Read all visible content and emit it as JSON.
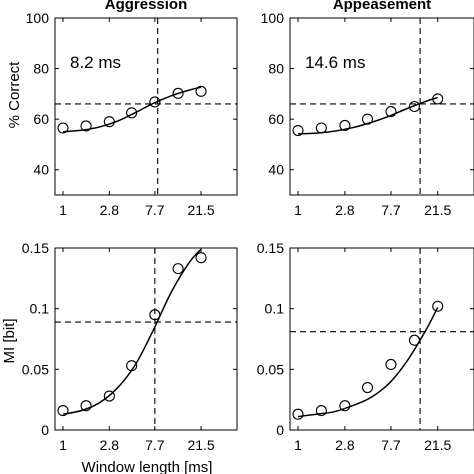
{
  "chart_data": [
    {
      "type": "scatter",
      "title": "Aggression",
      "xlabel": "",
      "ylabel": "% Correct",
      "annotation": "8.2 ms",
      "x_scale": "log",
      "xlim": [
        1,
        40
      ],
      "ylim": [
        30,
        100
      ],
      "xticks": [
        1,
        2.8,
        7.7,
        21.5
      ],
      "xtick_labels": [
        "1",
        "2.8",
        "7.7",
        "21.5"
      ],
      "yticks": [
        40,
        60,
        80,
        100
      ],
      "ytick_labels": [
        "40",
        "60",
        "80",
        "100"
      ],
      "points": {
        "x": [
          1,
          1.67,
          2.8,
          4.6,
          7.7,
          12.9,
          21.5
        ],
        "y": [
          56.5,
          57.3,
          59,
          62.5,
          66.8,
          70.2,
          71
        ]
      },
      "fit": {
        "x": [
          1,
          1.5,
          2.2,
          3.3,
          5,
          7.5,
          11,
          16.5,
          21.5
        ],
        "y": [
          55,
          55.6,
          56.8,
          59.1,
          62.6,
          66.3,
          69.2,
          71.5,
          72.6
        ]
      },
      "ref_x": 8.2,
      "ref_y": 66
    },
    {
      "type": "scatter",
      "title": "Appeasement",
      "xlabel": "",
      "ylabel": "",
      "annotation": "14.6 ms",
      "x_scale": "log",
      "xlim": [
        1,
        40
      ],
      "ylim": [
        30,
        100
      ],
      "xticks": [
        1,
        2.8,
        7.7,
        21.5
      ],
      "xtick_labels": [
        "1",
        "2.8",
        "7.7",
        "21.5"
      ],
      "yticks": [
        40,
        60,
        80,
        100
      ],
      "ytick_labels": [
        "40",
        "60",
        "80",
        "100"
      ],
      "points": {
        "x": [
          1,
          1.67,
          2.8,
          4.6,
          7.7,
          12.9,
          21.5
        ],
        "y": [
          55.5,
          56.5,
          57.5,
          60,
          63,
          65,
          68
        ]
      },
      "fit": {
        "x": [
          1,
          1.5,
          2.2,
          3.3,
          5,
          7.5,
          11,
          16.5,
          21.5
        ],
        "y": [
          54.2,
          54.5,
          55.2,
          56.6,
          58.7,
          61.3,
          64.2,
          67,
          68.5
        ]
      },
      "ref_x": 14.6,
      "ref_y": 66
    },
    {
      "type": "scatter",
      "title": "",
      "xlabel": "Window length [ms]",
      "ylabel": "MI [bit]",
      "annotation": "",
      "x_scale": "log",
      "xlim": [
        1,
        40
      ],
      "ylim": [
        0,
        0.15
      ],
      "xticks": [
        1,
        2.8,
        7.7,
        21.5
      ],
      "xtick_labels": [
        "1",
        "2.8",
        "7.7",
        "21.5"
      ],
      "yticks": [
        0,
        0.05,
        0.1,
        0.15
      ],
      "ytick_labels": [
        "0",
        "0.05",
        "0.1",
        "0.15"
      ],
      "points": {
        "x": [
          1,
          1.67,
          2.8,
          4.6,
          7.7,
          12.9,
          21.5
        ],
        "y": [
          0.016,
          0.02,
          0.028,
          0.053,
          0.095,
          0.133,
          0.142
        ]
      },
      "fit": {
        "x": [
          1,
          1.5,
          2.2,
          3.3,
          5,
          7.5,
          11,
          16.5,
          21.5
        ],
        "y": [
          0.013,
          0.016,
          0.022,
          0.034,
          0.054,
          0.083,
          0.113,
          0.138,
          0.149
        ]
      },
      "ref_x": 7.7,
      "ref_y": 0.089
    },
    {
      "type": "scatter",
      "title": "",
      "xlabel": "",
      "ylabel": "",
      "annotation": "",
      "x_scale": "log",
      "xlim": [
        1,
        40
      ],
      "ylim": [
        0,
        0.15
      ],
      "xticks": [
        1,
        2.8,
        7.7,
        21.5
      ],
      "xtick_labels": [
        "1",
        "2.8",
        "7.7",
        "21.5"
      ],
      "yticks": [
        0,
        0.05,
        0.1,
        0.15
      ],
      "ytick_labels": [
        "0",
        "0.05",
        "0.1",
        "0.15"
      ],
      "points": {
        "x": [
          1,
          1.67,
          2.8,
          4.6,
          7.7,
          12.9,
          21.5
        ],
        "y": [
          0.013,
          0.016,
          0.02,
          0.035,
          0.054,
          0.074,
          0.102
        ]
      },
      "fit": {
        "x": [
          1,
          1.5,
          2.2,
          3.3,
          5,
          7.5,
          11,
          16.5,
          21.5
        ],
        "y": [
          0.011,
          0.013,
          0.015,
          0.02,
          0.027,
          0.039,
          0.057,
          0.082,
          0.101
        ]
      },
      "ref_x": 14.6,
      "ref_y": 0.081
    }
  ]
}
